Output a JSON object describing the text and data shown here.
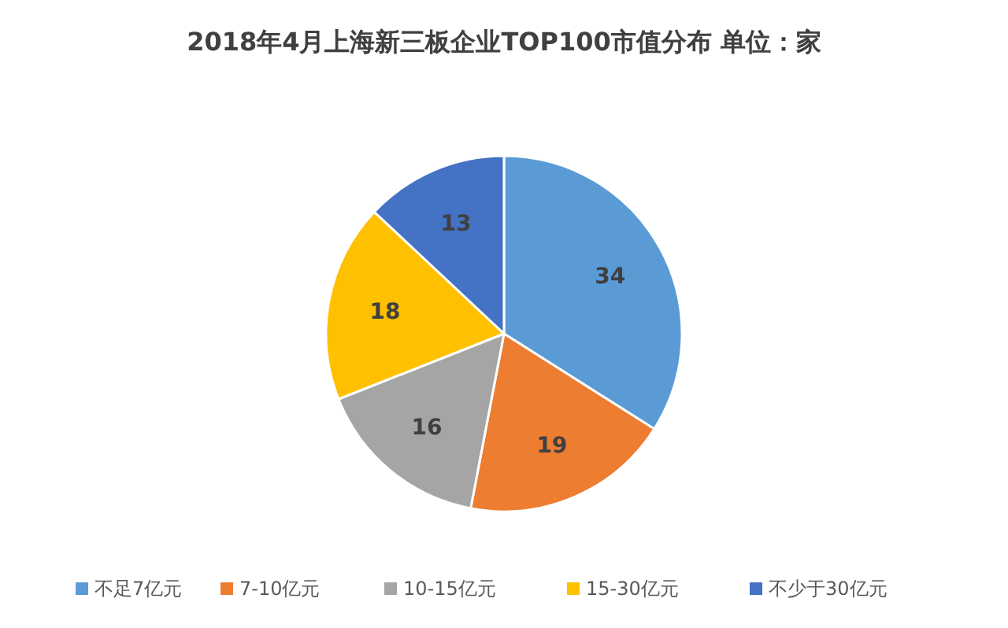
{
  "chart_data": {
    "type": "pie",
    "title": "2018年4月上海新三板企业TOP100市值分布 单位：家",
    "categories": [
      "不足7亿元",
      "7-10亿元",
      "10-15亿元",
      "15-30亿元",
      "不少于30亿元"
    ],
    "values": [
      34,
      19,
      16,
      18,
      13
    ],
    "colors": [
      "#5b9bd5",
      "#ed7d31",
      "#a5a5a5",
      "#ffc000",
      "#4472c4"
    ],
    "data_labels": true,
    "legend": "bottom"
  }
}
